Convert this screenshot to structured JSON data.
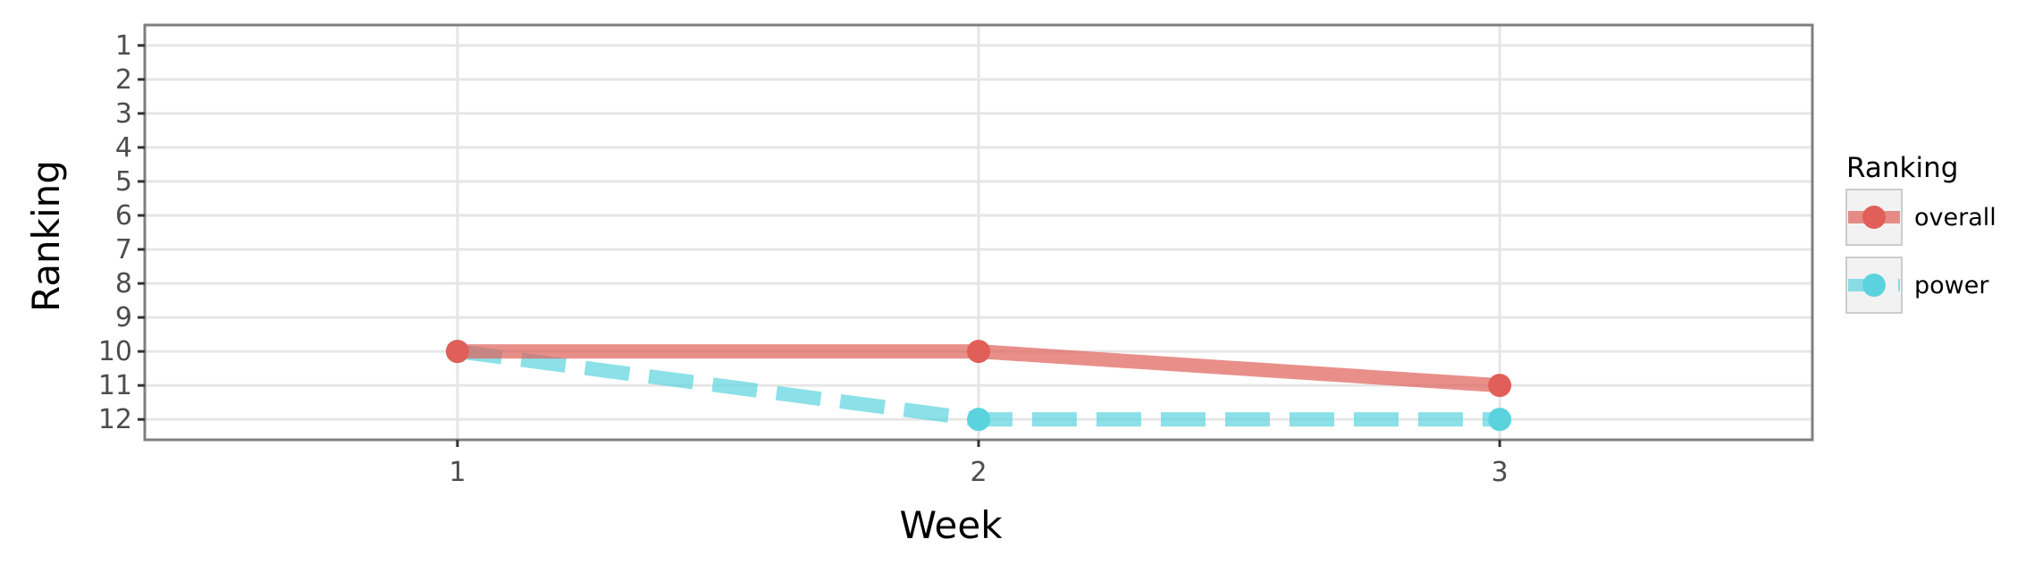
{
  "chart_data": {
    "type": "line",
    "title": "",
    "xlabel": "Week",
    "ylabel": "Ranking",
    "x": [
      1,
      2,
      3
    ],
    "xticks": [
      "1",
      "2",
      "3"
    ],
    "xlim": [
      0.4,
      3.6
    ],
    "ylim": [
      12.6,
      0.4
    ],
    "yticks": [
      "1",
      "2",
      "3",
      "4",
      "5",
      "6",
      "7",
      "8",
      "9",
      "10",
      "11",
      "12"
    ],
    "y_reversed": true,
    "grid": true,
    "legend_title": "Ranking",
    "legend_position": "right",
    "series": [
      {
        "name": "overall",
        "values": [
          10,
          10,
          11
        ],
        "color": "#e05f58",
        "linestyle": "solid"
      },
      {
        "name": "power",
        "values": [
          10,
          12,
          12
        ],
        "color": "#5bd3de",
        "linestyle": "dashed"
      }
    ]
  }
}
